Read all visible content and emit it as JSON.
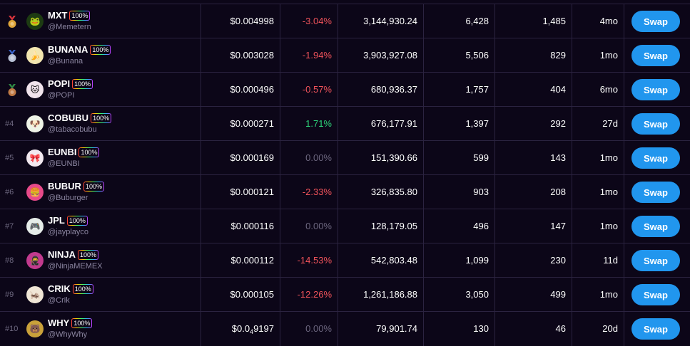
{
  "colors": {
    "background": "#0c0618",
    "grid": "#2b2340",
    "negative": "#f2545b",
    "positive": "#2ed47a",
    "neutral": "#6e6880",
    "swap_button": "#2196ee"
  },
  "rows": [
    {
      "rank": "",
      "medal": "gold-medal-icon",
      "symbol": "MXT",
      "badge": "100%",
      "handle": "@Memetern",
      "price": "$0.004998",
      "price_sub": "",
      "price_rest": "",
      "change": "-3.04%",
      "change_type": "neg",
      "volume": "3,144,930.24",
      "txns": "6,428",
      "holders": "1,485",
      "age": "4mo",
      "swap": "Swap",
      "avatar": "frog-avatar-icon",
      "avatar_bg": "#1d3b12",
      "avatar_glyph": "🐸"
    },
    {
      "rank": "",
      "medal": "silver-medal-icon",
      "symbol": "BUNANA",
      "badge": "100%",
      "handle": "@Bunana",
      "price": "$0.003028",
      "price_sub": "",
      "price_rest": "",
      "change": "-1.94%",
      "change_type": "neg",
      "volume": "3,903,927.08",
      "txns": "5,506",
      "holders": "829",
      "age": "1mo",
      "swap": "Swap",
      "avatar": "banana-avatar-icon",
      "avatar_bg": "#f3e6b0",
      "avatar_glyph": "🍌"
    },
    {
      "rank": "",
      "medal": "bronze-medal-icon",
      "symbol": "POPI",
      "badge": "100%",
      "handle": "@POPI",
      "price": "$0.000496",
      "price_sub": "",
      "price_rest": "",
      "change": "-0.57%",
      "change_type": "neg",
      "volume": "680,936.37",
      "txns": "1,757",
      "holders": "404",
      "age": "6mo",
      "swap": "Swap",
      "avatar": "popi-avatar-icon",
      "avatar_bg": "#f1e4ec",
      "avatar_glyph": "🐱"
    },
    {
      "rank": "#4",
      "medal": "",
      "symbol": "COBUBU",
      "badge": "100%",
      "handle": "@tabacobubu",
      "price": "$0.000271",
      "price_sub": "",
      "price_rest": "",
      "change": "1.71%",
      "change_type": "pos",
      "volume": "676,177.91",
      "txns": "1,397",
      "holders": "292",
      "age": "27d",
      "swap": "Swap",
      "avatar": "cobubu-avatar-icon",
      "avatar_bg": "#eef3e6",
      "avatar_glyph": "🐶"
    },
    {
      "rank": "#5",
      "medal": "",
      "symbol": "EUNBI",
      "badge": "100%",
      "handle": "@EUNBI",
      "price": "$0.000169",
      "price_sub": "",
      "price_rest": "",
      "change": "0.00%",
      "change_type": "zero",
      "volume": "151,390.66",
      "txns": "599",
      "holders": "143",
      "age": "1mo",
      "swap": "Swap",
      "avatar": "eunbi-avatar-icon",
      "avatar_bg": "#f2e8ef",
      "avatar_glyph": "🎀"
    },
    {
      "rank": "#6",
      "medal": "",
      "symbol": "BUBUR",
      "badge": "100%",
      "handle": "@Buburger",
      "price": "$0.000121",
      "price_sub": "",
      "price_rest": "",
      "change": "-2.33%",
      "change_type": "neg",
      "volume": "326,835.80",
      "txns": "903",
      "holders": "208",
      "age": "1mo",
      "swap": "Swap",
      "avatar": "bubur-avatar-icon",
      "avatar_bg": "#e84a8a",
      "avatar_glyph": "🍔"
    },
    {
      "rank": "#7",
      "medal": "",
      "symbol": "JPL",
      "badge": "100%",
      "handle": "@jayplayco",
      "price": "$0.000116",
      "price_sub": "",
      "price_rest": "",
      "change": "0.00%",
      "change_type": "zero",
      "volume": "128,179.05",
      "txns": "496",
      "holders": "147",
      "age": "1mo",
      "swap": "Swap",
      "avatar": "jpl-avatar-icon",
      "avatar_bg": "#e6ece9",
      "avatar_glyph": "🎮"
    },
    {
      "rank": "#8",
      "medal": "",
      "symbol": "NINJA",
      "badge": "100%",
      "handle": "@NinjaMEMEX",
      "price": "$0.000112",
      "price_sub": "",
      "price_rest": "",
      "change": "-14.53%",
      "change_type": "neg",
      "volume": "542,803.48",
      "txns": "1,099",
      "holders": "230",
      "age": "11d",
      "swap": "Swap",
      "avatar": "ninja-avatar-icon",
      "avatar_bg": "#c23a8e",
      "avatar_glyph": "🥷"
    },
    {
      "rank": "#9",
      "medal": "",
      "symbol": "CRIK",
      "badge": "100%",
      "handle": "@Crik",
      "price": "$0.000105",
      "price_sub": "",
      "price_rest": "",
      "change": "-12.26%",
      "change_type": "neg",
      "volume": "1,261,186.88",
      "txns": "3,050",
      "holders": "499",
      "age": "1mo",
      "swap": "Swap",
      "avatar": "crik-avatar-icon",
      "avatar_bg": "#f0e6d6",
      "avatar_glyph": "🦗"
    },
    {
      "rank": "#10",
      "medal": "",
      "symbol": "WHY",
      "badge": "100%",
      "handle": "@WhyWhy",
      "price": "$0.0",
      "price_sub": "4",
      "price_rest": "9197",
      "change": "0.00%",
      "change_type": "zero",
      "volume": "79,901.74",
      "txns": "130",
      "holders": "46",
      "age": "20d",
      "swap": "Swap",
      "avatar": "why-avatar-icon",
      "avatar_bg": "#c9a13a",
      "avatar_glyph": "🐻"
    }
  ]
}
